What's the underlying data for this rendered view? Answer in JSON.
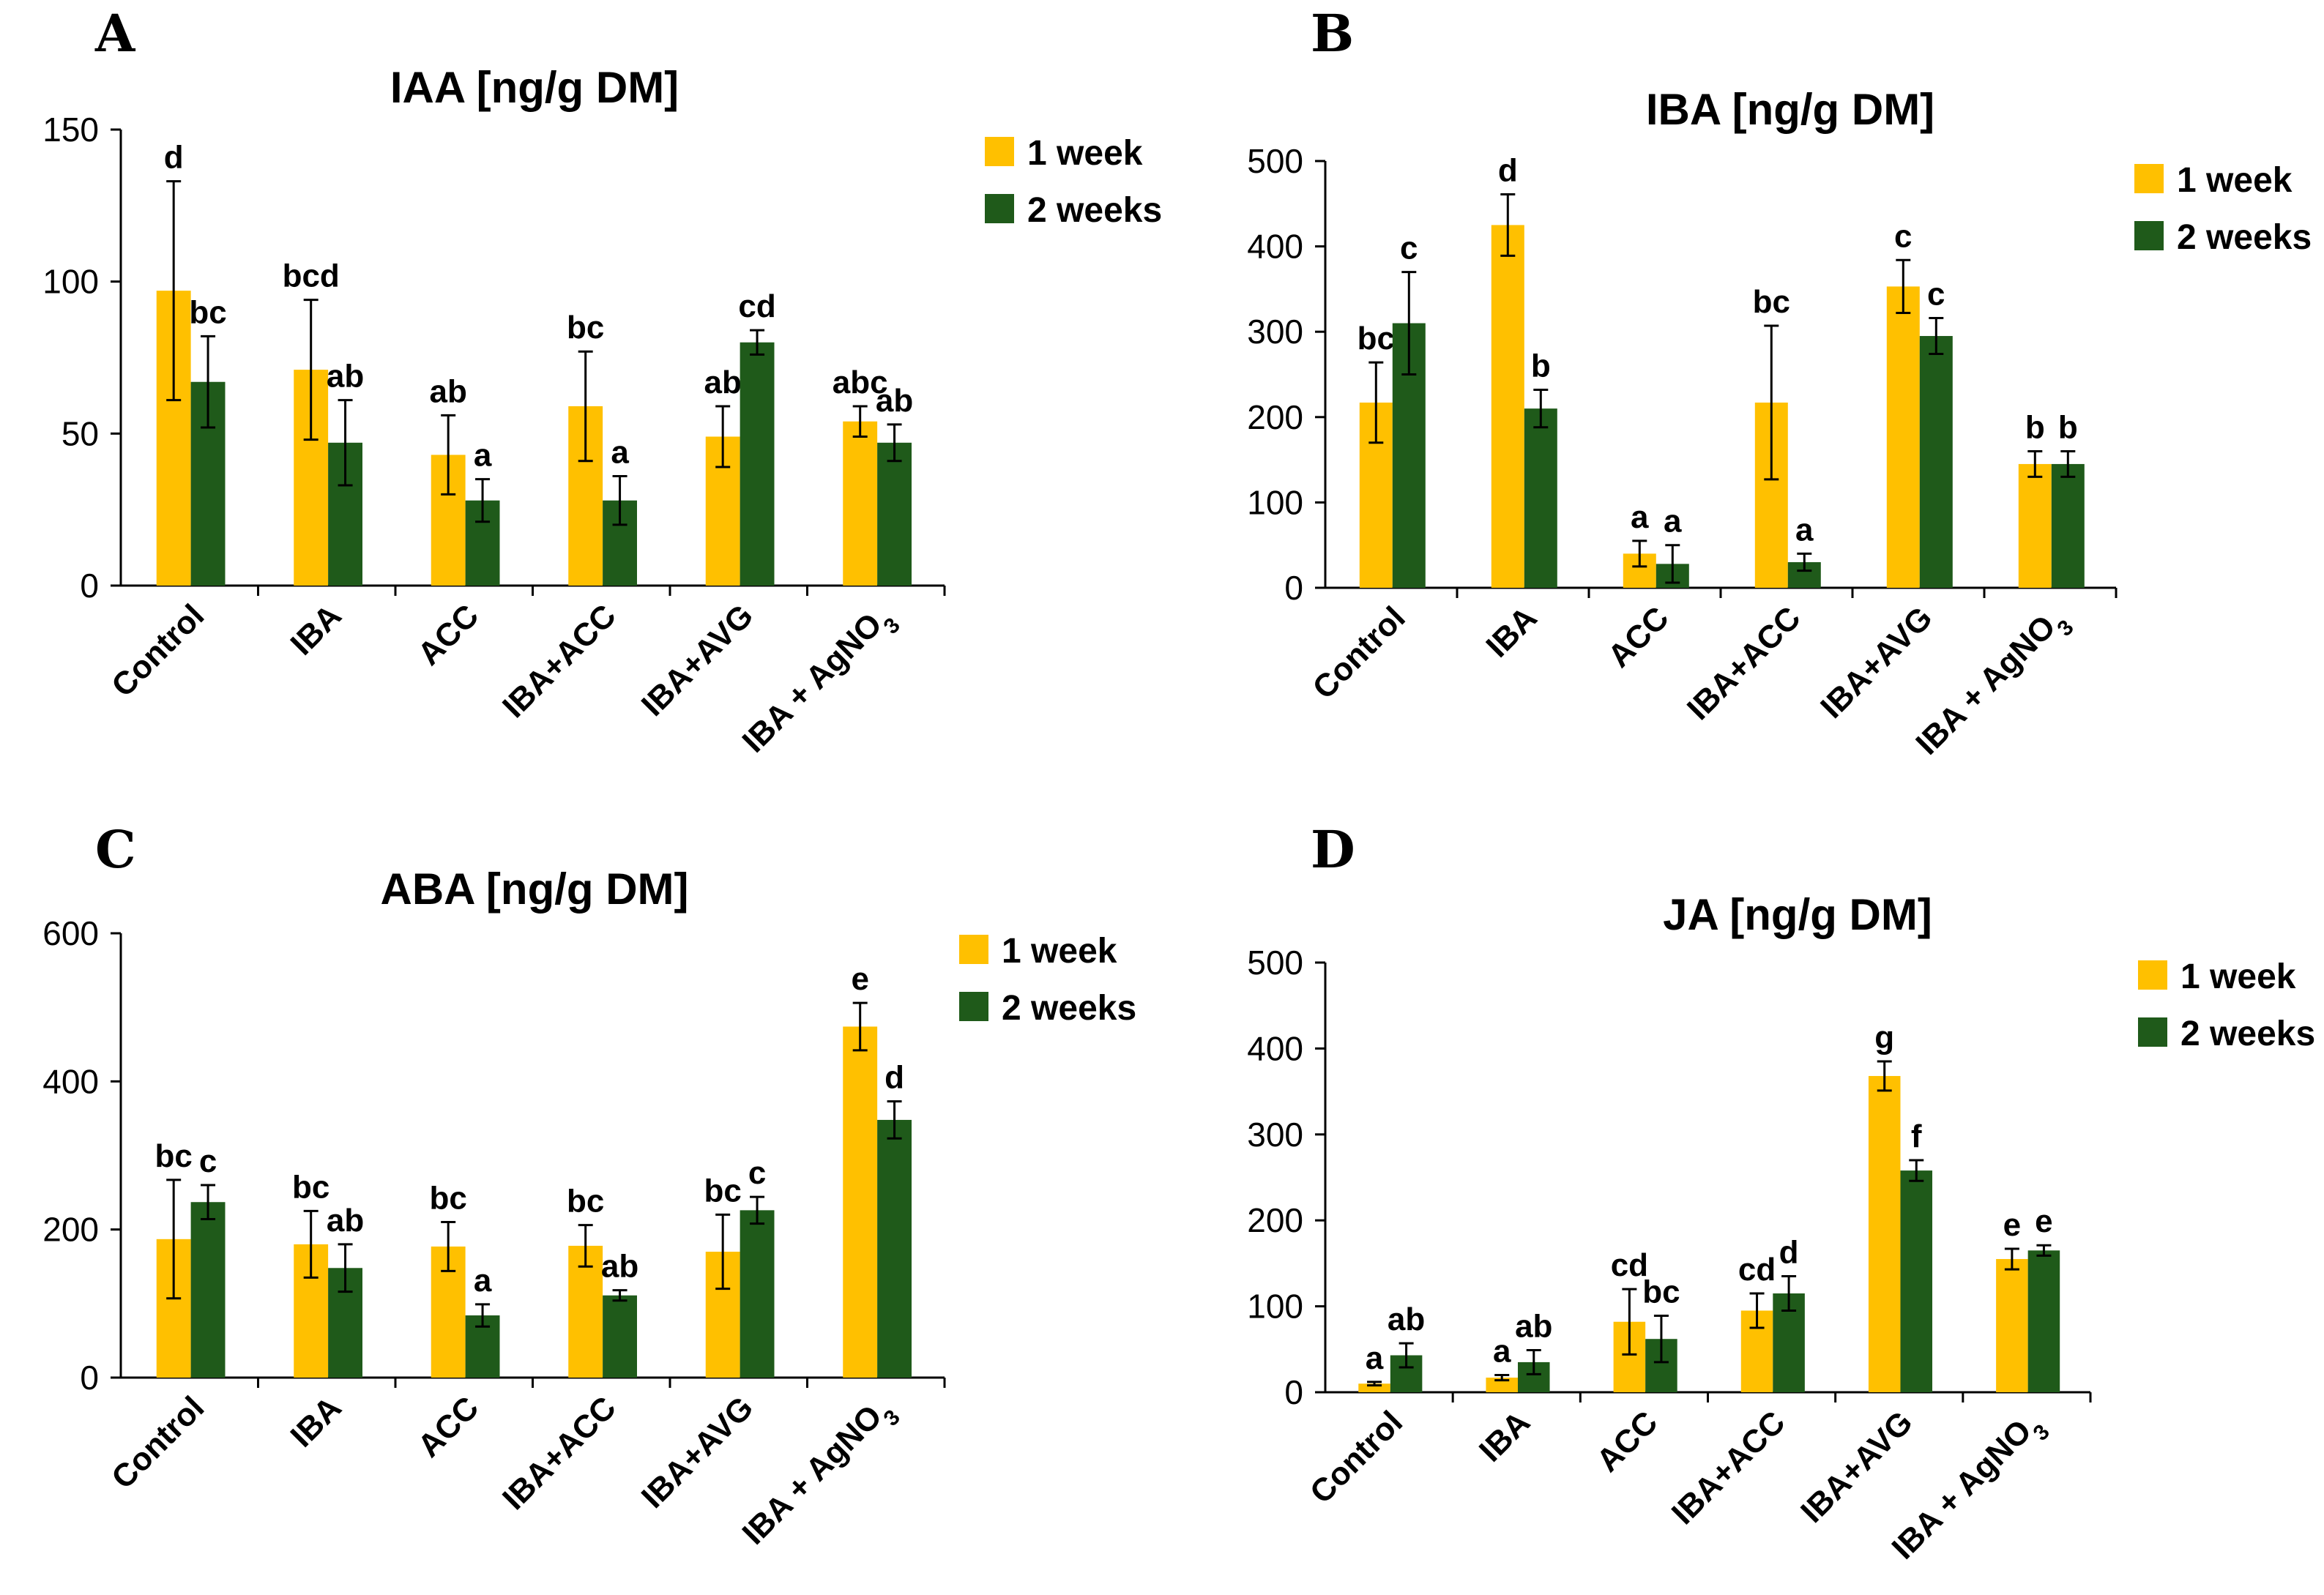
{
  "chart_data": [
    {
      "panel": "A",
      "type": "bar",
      "title": "IAA [ng/g DM]",
      "xlabel": "",
      "ylabel": "",
      "ylim": [
        0,
        150
      ],
      "yticks": [
        0,
        50,
        100,
        150
      ],
      "categories": [
        "Control",
        "IBA",
        "ACC",
        "IBA+ACC",
        "IBA+AVG",
        "IBA + AgNO3"
      ],
      "legend_position": "top-right",
      "series": [
        {
          "name": "1 week",
          "color": "#FFC000",
          "values": [
            97,
            71,
            43,
            59,
            49,
            54
          ],
          "errors": [
            36,
            23,
            13,
            18,
            10,
            5
          ],
          "letters": [
            "d",
            "bcd",
            "ab",
            "bc",
            "ab",
            "abc"
          ]
        },
        {
          "name": "2 weeks",
          "color": "#1F5A1A",
          "values": [
            67,
            47,
            28,
            28,
            80,
            47
          ],
          "errors": [
            15,
            14,
            7,
            8,
            4,
            6
          ],
          "letters": [
            "bc",
            "ab",
            "a",
            "a",
            "cd",
            "ab"
          ]
        }
      ]
    },
    {
      "panel": "B",
      "type": "bar",
      "title": "IBA [ng/g DM]",
      "xlabel": "",
      "ylabel": "",
      "ylim": [
        0,
        500
      ],
      "yticks": [
        0,
        100,
        200,
        300,
        400,
        500
      ],
      "categories": [
        "Control",
        "IBA",
        "ACC",
        "IBA+ACC",
        "IBA+AVG",
        "IBA + AgNO3"
      ],
      "legend_position": "top-right",
      "series": [
        {
          "name": "1 week",
          "color": "#FFC000",
          "values": [
            217,
            425,
            40,
            217,
            353,
            145
          ],
          "errors": [
            47,
            36,
            15,
            90,
            31,
            15
          ],
          "letters": [
            "bc",
            "d",
            "a",
            "bc",
            "c",
            "b"
          ]
        },
        {
          "name": "2 weeks",
          "color": "#1F5A1A",
          "values": [
            310,
            210,
            28,
            30,
            295,
            145
          ],
          "errors": [
            60,
            22,
            22,
            10,
            21,
            15
          ],
          "letters": [
            "c",
            "b",
            "a",
            "a",
            "c",
            "b"
          ]
        }
      ]
    },
    {
      "panel": "C",
      "type": "bar",
      "title": "ABA [ng/g DM]",
      "xlabel": "",
      "ylabel": "",
      "ylim": [
        0,
        600
      ],
      "yticks": [
        0,
        200,
        400,
        600
      ],
      "categories": [
        "Control",
        "IBA",
        "ACC",
        "IBA+ACC",
        "IBA+AVG",
        "IBA + AgNO3"
      ],
      "legend_position": "top-right",
      "series": [
        {
          "name": "1 week",
          "color": "#FFC000",
          "values": [
            187,
            180,
            177,
            178,
            170,
            474
          ],
          "errors": [
            80,
            45,
            33,
            28,
            50,
            32
          ],
          "letters": [
            "bc",
            "bc",
            "bc",
            "bc",
            "bc",
            "e"
          ]
        },
        {
          "name": "2 weeks",
          "color": "#1F5A1A",
          "values": [
            237,
            148,
            84,
            111,
            226,
            348
          ],
          "errors": [
            23,
            32,
            15,
            7,
            18,
            25
          ],
          "letters": [
            "c",
            "ab",
            "a",
            "ab",
            "c",
            "d"
          ]
        }
      ]
    },
    {
      "panel": "D",
      "type": "bar",
      "title": "JA [ng/g DM]",
      "xlabel": "",
      "ylabel": "",
      "ylim": [
        0,
        500
      ],
      "yticks": [
        0,
        100,
        200,
        300,
        400,
        500
      ],
      "categories": [
        "Control",
        "IBA",
        "ACC",
        "IBA+ACC",
        "IBA+AVG",
        "IBA + AgNO3"
      ],
      "legend_position": "top-right",
      "series": [
        {
          "name": "1 week",
          "color": "#FFC000",
          "values": [
            10,
            17,
            82,
            95,
            368,
            155
          ],
          "errors": [
            2,
            3,
            38,
            20,
            17,
            12
          ],
          "letters": [
            "a",
            "a",
            "cd",
            "cd",
            "g",
            "e"
          ]
        },
        {
          "name": "2 weeks",
          "color": "#1F5A1A",
          "values": [
            43,
            35,
            62,
            115,
            258,
            165
          ],
          "errors": [
            14,
            14,
            27,
            20,
            12,
            6
          ],
          "letters": [
            "ab",
            "ab",
            "bc",
            "d",
            "f",
            "e"
          ]
        }
      ]
    }
  ]
}
